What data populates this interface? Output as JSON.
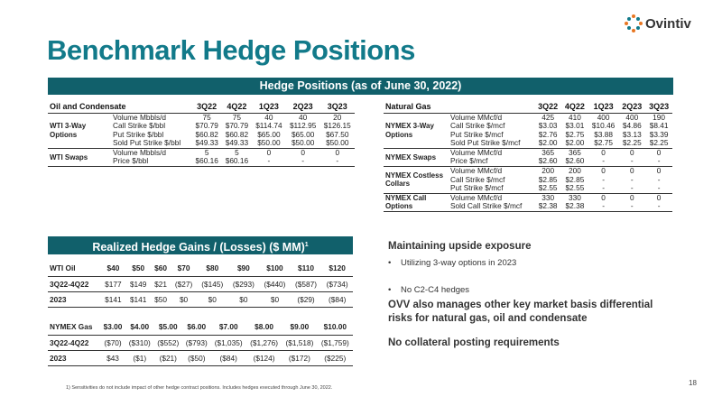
{
  "title": "Benchmark Hedge Positions",
  "logo": {
    "text": "Ovintiv",
    "accent": "#e87722"
  },
  "hedge_banner": "Hedge Positions (as of June 30, 2022)",
  "oil": {
    "header": [
      "Oil and Condensate",
      "3Q22",
      "4Q22",
      "1Q23",
      "2Q23",
      "3Q23"
    ],
    "groups": [
      {
        "label": "WTI 3-Way Options",
        "rows": [
          [
            "Volume Mbbls/d",
            "75",
            "75",
            "40",
            "40",
            "20"
          ],
          [
            "Call Strike $/bbl",
            "$70.79",
            "$70.79",
            "$114.74",
            "$112.95",
            "$126.15"
          ],
          [
            "Put Strike $/bbl",
            "$60.82",
            "$60.82",
            "$65.00",
            "$65.00",
            "$67.50"
          ],
          [
            "Sold Put Strike $/bbl",
            "$49.33",
            "$49.33",
            "$50.00",
            "$50.00",
            "$50.00"
          ]
        ]
      },
      {
        "label": "WTI Swaps",
        "rows": [
          [
            "Volume Mbbls/d",
            "5",
            "5",
            "0",
            "0",
            "0"
          ],
          [
            "Price $/bbl",
            "$60.16",
            "$60.16",
            "-",
            "-",
            "-"
          ]
        ]
      }
    ]
  },
  "gas": {
    "header": [
      "Natural Gas",
      "3Q22",
      "4Q22",
      "1Q23",
      "2Q23",
      "3Q23"
    ],
    "groups": [
      {
        "label": "NYMEX 3-Way Options",
        "rows": [
          [
            "Volume MMcf/d",
            "425",
            "410",
            "400",
            "400",
            "190"
          ],
          [
            "Call Strike $/mcf",
            "$3.03",
            "$3.01",
            "$10.46",
            "$4.86",
            "$8.41"
          ],
          [
            "Put Strike $/mcf",
            "$2.76",
            "$2.75",
            "$3.88",
            "$3.13",
            "$3.39"
          ],
          [
            "Sold Put Strike $/mcf",
            "$2.00",
            "$2.00",
            "$2.75",
            "$2.25",
            "$2.25"
          ]
        ]
      },
      {
        "label": "NYMEX Swaps",
        "rows": [
          [
            "Volume MMcf/d",
            "365",
            "365",
            "0",
            "0",
            "0"
          ],
          [
            "Price $/mcf",
            "$2.60",
            "$2.60",
            "-",
            "-",
            "-"
          ]
        ]
      },
      {
        "label": "NYMEX Costless Collars",
        "rows": [
          [
            "Volume MMcf/d",
            "200",
            "200",
            "0",
            "0",
            "0"
          ],
          [
            "Call Strike $/mcf",
            "$2.85",
            "$2.85",
            "-",
            "-",
            "-"
          ],
          [
            "Put Strike $/mcf",
            "$2.55",
            "$2.55",
            "-",
            "-",
            "-"
          ]
        ]
      },
      {
        "label": "NYMEX Call Options",
        "rows": [
          [
            "Volume MMcf/d",
            "330",
            "330",
            "0",
            "0",
            "0"
          ],
          [
            "Sold Call Strike $/mcf",
            "$2.38",
            "$2.38",
            "-",
            "-",
            "-"
          ]
        ]
      }
    ]
  },
  "realized_banner": "Realized Hedge Gains / (Losses) ($ MM)",
  "realized_banner_sup": "1",
  "oil_realized": {
    "header": [
      "WTI Oil",
      "$40",
      "$50",
      "$60",
      "$70",
      "$80",
      "$90",
      "$100",
      "$110",
      "$120"
    ],
    "rows": [
      [
        "3Q22-4Q22",
        "$177",
        "$149",
        "$21",
        "($27)",
        "($145)",
        "($293)",
        "($440)",
        "($587)",
        "($734)"
      ],
      [
        "2023",
        "$141",
        "$141",
        "$50",
        "$0",
        "$0",
        "$0",
        "$0",
        "($29)",
        "($84)"
      ]
    ]
  },
  "gas_realized": {
    "header": [
      "NYMEX Gas",
      "$3.00",
      "$4.00",
      "$5.00",
      "$6.00",
      "$7.00",
      "$8.00",
      "$9.00",
      "$10.00"
    ],
    "rows": [
      [
        "3Q22-4Q22",
        "($70)",
        "($310)",
        "($552)",
        "($793)",
        "($1,035)",
        "($1,276)",
        "($1,518)",
        "($1,759)"
      ],
      [
        "2023",
        "$43",
        "($1)",
        "($21)",
        "($50)",
        "($84)",
        "($124)",
        "($172)",
        "($225)"
      ]
    ]
  },
  "right_panel": {
    "heading1": "Maintaining upside exposure",
    "bullets": [
      "Utilizing 3-way options in 2023",
      "No C2-C4 hedges"
    ],
    "heading2": "OVV also manages other key market basis differential risks for natural gas, oil and condensate",
    "heading3": "No collateral posting requirements"
  },
  "footnote": "1) Sensitivities do not include impact of other hedge contract positions. Includes hedges executed through June 30, 2022.",
  "page_number": "18",
  "colors": {
    "title": "#127a8a",
    "banner": "#11606b"
  }
}
